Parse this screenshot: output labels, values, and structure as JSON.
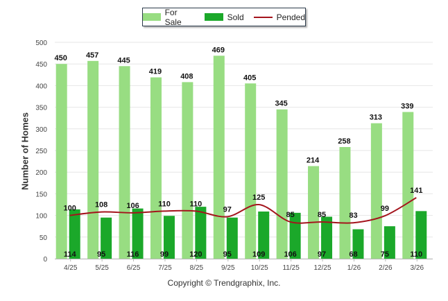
{
  "legend": {
    "for_sale": "For Sale",
    "sold": "Sold",
    "pended": "Pended"
  },
  "colors": {
    "for_sale": "#98dd82",
    "sold": "#1ba82a",
    "pended": "#a4141c"
  },
  "footer": {
    "copyright": "Copyright © Trendgraphix, Inc."
  },
  "chart_data": {
    "type": "bar",
    "title": "",
    "xlabel": "",
    "ylabel": "Number of Homes",
    "ylim": [
      0,
      500
    ],
    "yticks": [
      0,
      50,
      100,
      150,
      200,
      250,
      300,
      350,
      400,
      450,
      500
    ],
    "grid": true,
    "legend_position": "top-center",
    "categories": [
      "4/25",
      "5/25",
      "6/25",
      "7/25",
      "8/25",
      "9/25",
      "10/25",
      "11/25",
      "12/25",
      "1/26",
      "2/26",
      "3/26"
    ],
    "series": [
      {
        "name": "For Sale",
        "type": "bar",
        "values": [
          450,
          457,
          445,
          419,
          408,
          469,
          405,
          345,
          214,
          258,
          313,
          339
        ]
      },
      {
        "name": "Sold",
        "type": "bar",
        "values": [
          114,
          95,
          116,
          99,
          120,
          95,
          109,
          106,
          97,
          68,
          75,
          110
        ]
      },
      {
        "name": "Pended",
        "type": "line",
        "values": [
          100,
          108,
          106,
          110,
          110,
          97,
          125,
          85,
          85,
          83,
          99,
          141
        ]
      }
    ]
  }
}
